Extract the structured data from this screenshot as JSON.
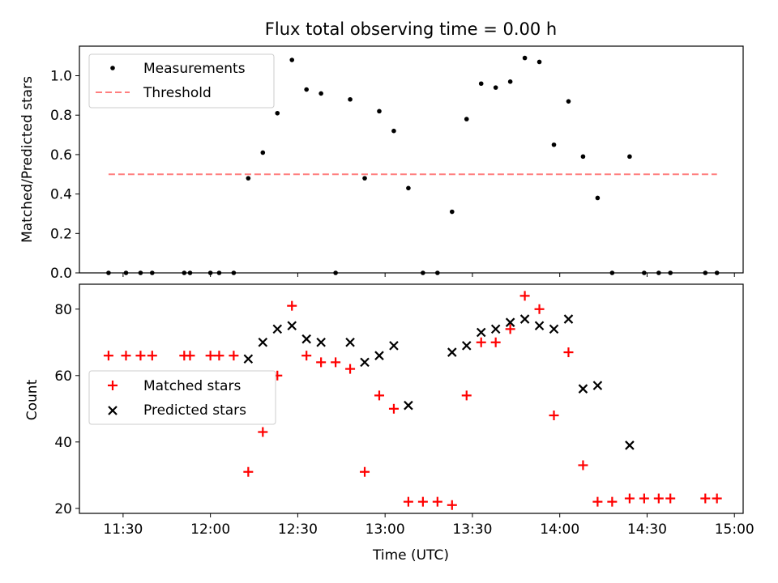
{
  "chart_data": [
    {
      "type": "scatter",
      "title": "Flux total observing time = 0.00 h",
      "xlabel": "",
      "ylabel": "Matched/Predicted stars",
      "ylim": [
        0,
        1.15
      ],
      "yticks": [
        "0.0",
        "0.2",
        "0.4",
        "0.6",
        "0.8",
        "1.0"
      ],
      "legend_position": "upper-left",
      "series": [
        {
          "name": "Measurements",
          "marker": "dot",
          "color": "#000000",
          "x": [
            "11:25",
            "11:31",
            "11:36",
            "11:40",
            "11:51",
            "11:53",
            "12:00",
            "12:03",
            "12:08",
            "12:13",
            "12:18",
            "12:23",
            "12:28",
            "12:33",
            "12:38",
            "12:43",
            "12:48",
            "12:53",
            "12:58",
            "13:03",
            "13:08",
            "13:13",
            "13:18",
            "13:23",
            "13:28",
            "13:33",
            "13:38",
            "13:43",
            "13:48",
            "13:53",
            "13:58",
            "14:03",
            "14:08",
            "14:13",
            "14:18",
            "14:24",
            "14:29",
            "14:34",
            "14:38",
            "14:50",
            "14:54"
          ],
          "y": [
            0,
            0,
            0,
            0,
            0,
            0,
            0,
            0,
            0,
            0.48,
            0.61,
            0.81,
            1.08,
            0.93,
            0.91,
            0,
            0.88,
            0.48,
            0.82,
            0.72,
            0.43,
            0,
            0,
            0.31,
            0.78,
            0.96,
            0.94,
            0.97,
            1.09,
            1.07,
            0.65,
            0.87,
            0.59,
            0.38,
            0,
            0.59,
            0,
            0,
            0,
            0,
            0
          ]
        },
        {
          "name": "Threshold",
          "line": "dashed",
          "color": "#ff7f7f",
          "x": [
            "11:25",
            "14:54"
          ],
          "y": [
            0.5,
            0.5
          ]
        }
      ]
    },
    {
      "type": "scatter",
      "title": "",
      "xlabel": "Time (UTC)",
      "ylabel": "Count",
      "ylim": [
        18.5,
        87.5
      ],
      "yticks": [
        "20",
        "40",
        "60",
        "80"
      ],
      "xlim": [
        "11:15",
        "15:03"
      ],
      "xticks": [
        "11:30",
        "12:00",
        "12:30",
        "13:00",
        "13:30",
        "14:00",
        "14:30",
        "15:00"
      ],
      "legend_position": "center-left",
      "series": [
        {
          "name": "Matched stars",
          "marker": "plus",
          "color": "#ff0000",
          "x": [
            "11:25",
            "11:31",
            "11:36",
            "11:40",
            "11:51",
            "11:53",
            "12:00",
            "12:03",
            "12:08",
            "12:13",
            "12:18",
            "12:23",
            "12:28",
            "12:33",
            "12:38",
            "12:43",
            "12:48",
            "12:53",
            "12:58",
            "13:03",
            "13:08",
            "13:13",
            "13:18",
            "13:23",
            "13:28",
            "13:33",
            "13:38",
            "13:43",
            "13:48",
            "13:53",
            "13:58",
            "14:03",
            "14:08",
            "14:13",
            "14:18",
            "14:24",
            "14:29",
            "14:34",
            "14:38",
            "14:50",
            "14:54"
          ],
          "y": [
            66,
            66,
            66,
            66,
            66,
            66,
            66,
            66,
            66,
            31,
            43,
            60,
            81,
            66,
            64,
            64,
            62,
            31,
            54,
            50,
            22,
            22,
            22,
            21,
            54,
            70,
            70,
            74,
            84,
            80,
            48,
            67,
            33,
            22,
            22,
            23,
            23,
            23,
            23,
            23,
            23
          ]
        },
        {
          "name": "Predicted stars",
          "marker": "x",
          "color": "#000000",
          "x": [
            "12:13",
            "12:18",
            "12:23",
            "12:28",
            "12:33",
            "12:38",
            "12:48",
            "12:53",
            "12:58",
            "13:03",
            "13:08",
            "13:23",
            "13:28",
            "13:33",
            "13:38",
            "13:43",
            "13:48",
            "13:53",
            "13:58",
            "14:03",
            "14:08",
            "14:13",
            "14:24"
          ],
          "y": [
            65,
            70,
            74,
            75,
            71,
            70,
            70,
            64,
            66,
            69,
            51,
            67,
            69,
            73,
            74,
            76,
            77,
            75,
            74,
            77,
            56,
            57,
            39
          ]
        }
      ]
    }
  ]
}
